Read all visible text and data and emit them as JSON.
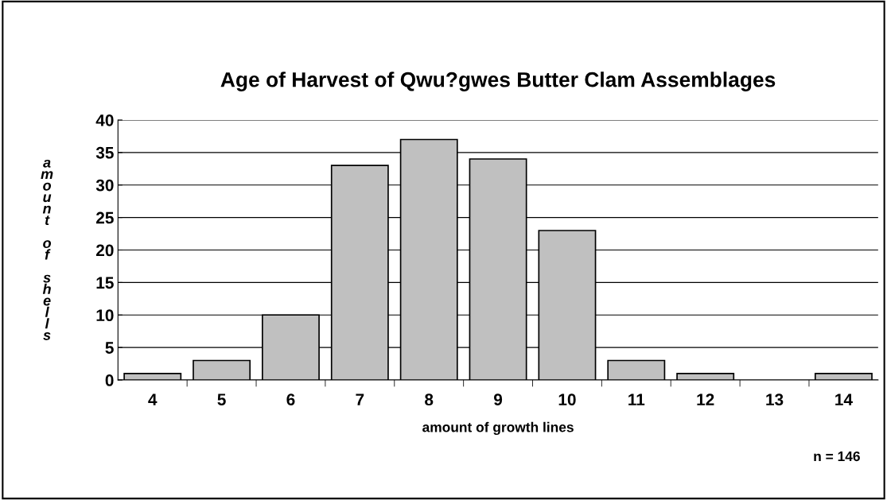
{
  "chart_data": {
    "type": "bar",
    "title": "Age of Harvest of Qwu?gwes Butter Clam Assemblages",
    "xlabel": "amount of growth lines",
    "ylabel": "amount of shells",
    "categories": [
      "4",
      "5",
      "6",
      "7",
      "8",
      "9",
      "10",
      "11",
      "12",
      "13",
      "14"
    ],
    "values": [
      1,
      3,
      10,
      33,
      37,
      34,
      23,
      3,
      1,
      0,
      1
    ],
    "color": "#c0c0c0",
    "ylim": [
      0,
      40
    ],
    "yticks": [
      0,
      5,
      10,
      15,
      20,
      25,
      30,
      35,
      40
    ],
    "grid": "y",
    "legend": false,
    "annotations": [
      "n = 146"
    ]
  }
}
